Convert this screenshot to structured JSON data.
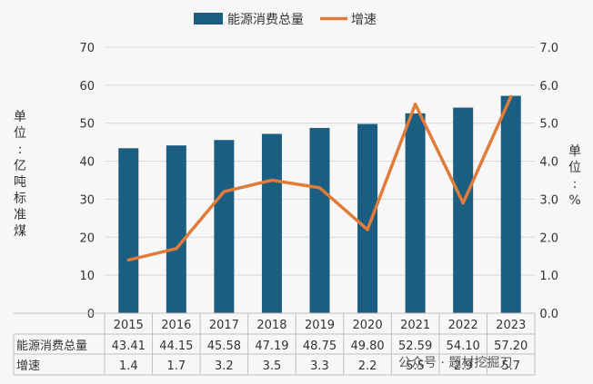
{
  "chart_data": {
    "type": "bar+line",
    "categories": [
      "2015",
      "2016",
      "2017",
      "2018",
      "2019",
      "2020",
      "2021",
      "2022",
      "2023"
    ],
    "series": [
      {
        "name": "能源消费总量",
        "type": "bar",
        "axis": "left",
        "values": [
          43.41,
          44.15,
          45.58,
          47.19,
          48.75,
          49.8,
          52.59,
          54.1,
          57.2
        ],
        "table_labels": [
          "43.41",
          "44.15",
          "45.58",
          "47.19",
          "48.75",
          "49.80",
          "52.59",
          "54.10",
          "57.20"
        ]
      },
      {
        "name": "增速",
        "type": "line",
        "axis": "right",
        "values": [
          1.4,
          1.7,
          3.2,
          3.5,
          3.3,
          2.2,
          5.5,
          2.9,
          5.7
        ],
        "table_labels": [
          "1.4",
          "1.7",
          "3.2",
          "3.5",
          "3.3",
          "2.2",
          "5.5",
          "2.9",
          "5.7"
        ]
      }
    ],
    "left_axis": {
      "label": "单位：亿吨标准煤",
      "range": [
        0,
        70
      ],
      "ticks": [
        "0",
        "10",
        "20",
        "30",
        "40",
        "50",
        "60",
        "70"
      ]
    },
    "right_axis": {
      "label": "单位：%",
      "range": [
        0,
        7
      ],
      "ticks": [
        "0.0",
        "1.0",
        "2.0",
        "3.0",
        "4.0",
        "5.0",
        "6.0",
        "7.0"
      ]
    },
    "legend_position": "top-center",
    "grid": true,
    "colors": {
      "bar": "#1b5e82",
      "line": "#e07b39",
      "grid": "#d9d9d9",
      "text": "#333333"
    }
  },
  "watermark": "公众号 · 题材挖掘刀"
}
